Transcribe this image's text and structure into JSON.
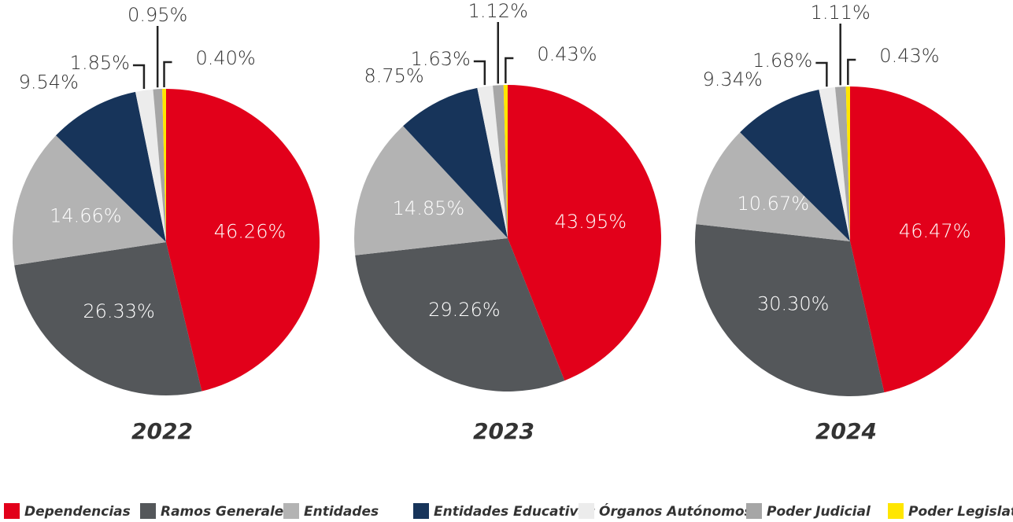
{
  "chart_data": [
    {
      "type": "pie",
      "title": "2022",
      "values": [
        46.26,
        26.33,
        14.66,
        9.54,
        1.85,
        0.95,
        0.4
      ],
      "value_labels": [
        "46.26%",
        "26.33%",
        "14.66%",
        "9.54%",
        "1.85%",
        "0.95%",
        "0.40%"
      ]
    },
    {
      "type": "pie",
      "title": "2023",
      "values": [
        43.95,
        29.26,
        14.85,
        8.75,
        1.63,
        1.12,
        0.43
      ],
      "value_labels": [
        "43.95%",
        "29.26%",
        "14.85%",
        "8.75%",
        "1.63%",
        "1.12%",
        "0.43%"
      ]
    },
    {
      "type": "pie",
      "title": "2024",
      "values": [
        46.47,
        30.3,
        10.67,
        9.34,
        1.68,
        1.11,
        0.43
      ],
      "value_labels": [
        "46.47%",
        "30.30%",
        "10.67%",
        "9.34%",
        "1.68%",
        "1.11%",
        "0.43%"
      ]
    }
  ],
  "legend": {
    "categories": [
      "Dependencias",
      "Ramos Generales",
      "Entidades",
      "Entidades Educativas",
      "Órganos Autónomos",
      "Poder Judicial",
      "Poder Legislativo"
    ],
    "colors": [
      "#e2001a",
      "#54575a",
      "#b3b3b3",
      "#17345a",
      "#ececec",
      "#a6a6a6",
      "#ffe600"
    ]
  }
}
